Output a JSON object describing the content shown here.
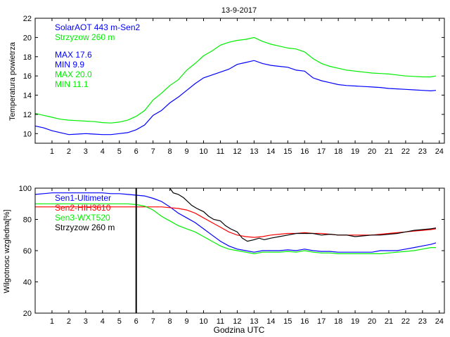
{
  "figure_title": "13-9-2017",
  "chart_data": [
    {
      "type": "line",
      "ylabel": "Temperatura powietrza",
      "xlabel": "",
      "xlim": [
        0,
        24.3
      ],
      "ylim": [
        9,
        22
      ],
      "xticks": [
        1,
        2,
        3,
        4,
        5,
        6,
        7,
        8,
        9,
        10,
        11,
        12,
        13,
        14,
        15,
        16,
        17,
        18,
        19,
        20,
        21,
        22,
        23,
        24
      ],
      "yticks": [
        10,
        12,
        14,
        16,
        18,
        20,
        22
      ],
      "legend": [
        {
          "text": "SolarAOT 443 m-Sen2",
          "color": "#0000ff"
        },
        {
          "text": "Strzyzow 260 m",
          "color": "#00ee00"
        }
      ],
      "stats": [
        {
          "text": "MAX 17.6",
          "color": "#0000ff"
        },
        {
          "text": "MIN 9.9",
          "color": "#0000ff"
        },
        {
          "text": "MAX 20.0",
          "color": "#00ee00"
        },
        {
          "text": "MIN 11.1",
          "color": "#00ee00"
        }
      ],
      "series": [
        {
          "name": "SolarAOT 443 m-Sen2",
          "color": "#0000ff",
          "x": [
            0,
            0.5,
            1,
            1.5,
            2,
            2.5,
            3,
            3.5,
            4,
            4.5,
            5,
            5.5,
            6,
            6.5,
            7,
            7.5,
            8,
            8.5,
            9,
            9.5,
            10,
            10.5,
            11,
            11.5,
            12,
            12.5,
            13,
            13.5,
            14,
            14.5,
            15,
            15.5,
            16,
            16.5,
            17,
            17.5,
            18,
            18.5,
            19,
            19.5,
            20,
            20.5,
            21,
            21.5,
            22,
            22.5,
            23,
            23.5,
            23.8
          ],
          "y": [
            10.8,
            10.6,
            10.3,
            10.1,
            9.9,
            9.95,
            10.0,
            9.95,
            9.9,
            9.9,
            10.0,
            10.1,
            10.4,
            10.9,
            11.9,
            12.4,
            13.2,
            13.8,
            14.5,
            15.2,
            15.8,
            16.1,
            16.4,
            16.7,
            17.2,
            17.4,
            17.6,
            17.3,
            17.1,
            17.0,
            16.9,
            16.6,
            16.5,
            15.8,
            15.5,
            15.3,
            15.1,
            15.0,
            14.95,
            14.9,
            14.85,
            14.8,
            14.7,
            14.65,
            14.6,
            14.55,
            14.5,
            14.45,
            14.5
          ]
        },
        {
          "name": "Strzyzow 260 m",
          "color": "#00ee00",
          "x": [
            0,
            0.5,
            1,
            1.5,
            2,
            2.5,
            3,
            3.5,
            4,
            4.5,
            5,
            5.5,
            6,
            6.5,
            7,
            7.5,
            8,
            8.5,
            9,
            9.5,
            10,
            10.5,
            11,
            11.5,
            12,
            12.5,
            13,
            13.5,
            14,
            14.5,
            15,
            15.5,
            16,
            16.5,
            17,
            17.5,
            18,
            18.5,
            19,
            19.5,
            20,
            20.5,
            21,
            21.5,
            22,
            22.5,
            23,
            23.5,
            23.8
          ],
          "y": [
            12.1,
            11.9,
            11.7,
            11.5,
            11.4,
            11.35,
            11.3,
            11.25,
            11.15,
            11.1,
            11.2,
            11.4,
            11.8,
            12.4,
            13.5,
            14.2,
            15.0,
            15.6,
            16.6,
            17.3,
            18.1,
            18.6,
            19.2,
            19.5,
            19.7,
            19.8,
            20.0,
            19.6,
            19.3,
            19.1,
            18.9,
            18.8,
            18.5,
            17.8,
            17.3,
            17.0,
            16.8,
            16.6,
            16.5,
            16.4,
            16.3,
            16.25,
            16.2,
            16.1,
            16.0,
            15.95,
            15.9,
            15.9,
            16.0
          ]
        }
      ]
    },
    {
      "type": "line",
      "ylabel": "Wilgotnosc wzgledna[%]",
      "xlabel": "Godzina UTC",
      "xlim": [
        0,
        24.3
      ],
      "ylim": [
        20,
        100
      ],
      "xticks": [
        1,
        2,
        3,
        4,
        5,
        6,
        7,
        8,
        9,
        10,
        11,
        12,
        13,
        14,
        15,
        16,
        17,
        18,
        19,
        20,
        21,
        22,
        23,
        24
      ],
      "yticks": [
        20,
        40,
        60,
        80,
        100
      ],
      "legend": [
        {
          "text": "Sen1-Ultimeter",
          "color": "#0000ff"
        },
        {
          "text": "Sen2-HIH3610",
          "color": "#ff0000"
        },
        {
          "text": "Sen3-WXT520",
          "color": "#00ee00"
        },
        {
          "text": "Strzyzow 260 m",
          "color": "#000000"
        }
      ],
      "series": [
        {
          "name": "Sen1-Ultimeter",
          "color": "#0000ff",
          "x": [
            0,
            0.5,
            1,
            1.5,
            2,
            2.5,
            3,
            3.5,
            4,
            4.5,
            5,
            5.5,
            6,
            6.5,
            7,
            7.5,
            8,
            8.5,
            9,
            9.5,
            10,
            10.5,
            11,
            11.5,
            12,
            12.5,
            13,
            13.5,
            14,
            14.5,
            15,
            15.5,
            16,
            16.5,
            17,
            17.5,
            18,
            18.5,
            19,
            19.5,
            20,
            20.5,
            21,
            21.5,
            22,
            22.5,
            23,
            23.5,
            23.8
          ],
          "y": [
            96,
            96.5,
            97,
            97,
            97,
            97,
            97,
            97,
            97,
            96.5,
            96.5,
            96,
            95.5,
            95,
            93.5,
            91.5,
            88,
            84,
            81,
            78,
            74,
            70,
            66,
            63,
            61,
            60,
            59,
            60,
            60,
            60,
            60.5,
            60,
            61,
            60,
            59.5,
            59.5,
            59,
            59,
            59,
            59,
            59,
            60,
            60,
            60,
            61,
            62,
            63,
            64,
            65
          ]
        },
        {
          "name": "Sen2-HIH3610",
          "color": "#ff0000",
          "x": [
            0,
            0.5,
            1,
            1.5,
            2,
            2.5,
            3,
            3.5,
            4,
            4.5,
            5,
            5.5,
            6,
            6.5,
            7,
            7.5,
            8,
            8.5,
            9,
            9.5,
            10,
            10.5,
            11,
            11.5,
            12,
            12.5,
            13,
            13.5,
            14,
            14.5,
            15,
            15.5,
            16,
            16.5,
            17,
            17.5,
            18,
            18.5,
            19,
            19.5,
            20,
            20.5,
            21,
            21.5,
            22,
            22.5,
            23,
            23.5,
            23.8
          ],
          "y": [
            88,
            88,
            88,
            88,
            88,
            88,
            88,
            88,
            88,
            88,
            88,
            88,
            88,
            88,
            88,
            88,
            87.5,
            87,
            86,
            84,
            81,
            78,
            75,
            72,
            70,
            69,
            68.5,
            69,
            70,
            70.5,
            71,
            71,
            71.5,
            71,
            71,
            70.5,
            70,
            70,
            70,
            70,
            70,
            70.5,
            71,
            71.5,
            72,
            72.5,
            73,
            73.5,
            74
          ]
        },
        {
          "name": "Sen3-WXT520",
          "color": "#00ee00",
          "x": [
            0,
            0.5,
            1,
            1.5,
            2,
            2.5,
            3,
            3.5,
            4,
            4.5,
            5,
            5.5,
            6,
            6.5,
            7,
            7.5,
            8,
            8.5,
            9,
            9.5,
            10,
            10.5,
            11,
            11.5,
            12,
            12.5,
            13,
            13.5,
            14,
            14.5,
            15,
            15.5,
            16,
            16.5,
            17,
            17.5,
            18,
            18.5,
            19,
            19.5,
            20,
            20.5,
            21,
            21.5,
            22,
            22.5,
            23,
            23.5,
            23.8
          ],
          "y": [
            90,
            90,
            90,
            90,
            90,
            90,
            90,
            90,
            90,
            90,
            90,
            90,
            89.5,
            88.5,
            86,
            82,
            79,
            76,
            74,
            72,
            69,
            66,
            63,
            61,
            60,
            59,
            58,
            59,
            59,
            59,
            59.5,
            59,
            60,
            59,
            58.5,
            58.5,
            58,
            58,
            58,
            58,
            58,
            58,
            58.5,
            59,
            59.5,
            60,
            61,
            62,
            62
          ]
        },
        {
          "name": "Strzyzow 260 m",
          "color": "#000000",
          "x": [
            8.0,
            8.2,
            8.5,
            8.8,
            9,
            9.3,
            9.6,
            10,
            10.3,
            10.6,
            11,
            11.3,
            11.6,
            12,
            12.3,
            12.6,
            13,
            13.3,
            13.6,
            14,
            14.5,
            15,
            15.5,
            16,
            16.5,
            17,
            17.5,
            18,
            18.5,
            19,
            19.5,
            20,
            20.5,
            21,
            21.5,
            22,
            22.5,
            23,
            23.5,
            23.8
          ],
          "y": [
            100,
            97,
            96,
            94,
            92,
            89,
            87,
            85,
            82,
            80,
            79,
            76,
            74,
            72,
            68,
            66,
            67,
            68,
            67,
            68,
            69,
            70,
            71,
            71,
            71,
            70,
            70.5,
            70,
            70,
            69,
            69.5,
            70,
            70,
            70.5,
            71,
            72,
            73,
            73.5,
            74,
            74.5
          ]
        }
      ],
      "annotations": [
        {
          "type": "vertical-line",
          "x": 6,
          "color": "#000000"
        }
      ]
    }
  ]
}
